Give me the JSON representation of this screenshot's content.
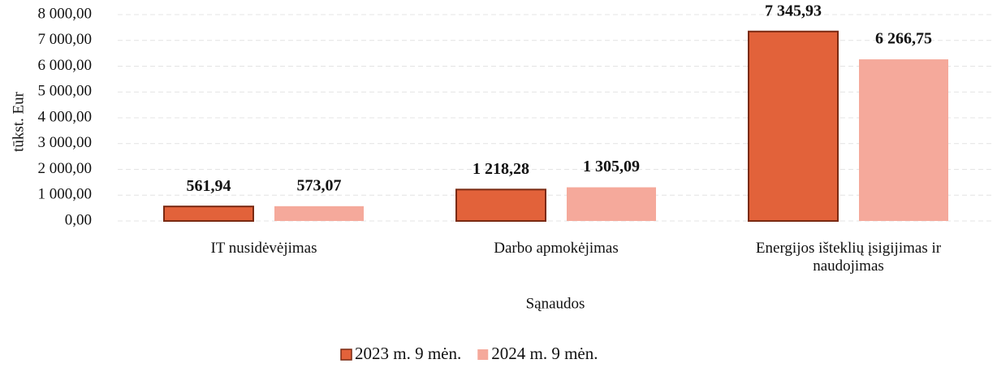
{
  "chart_data": {
    "type": "bar",
    "ylabel": "tūkst. Eur",
    "xlabel": "Sąnaudos",
    "categories": [
      "IT nusidėvėjimas",
      "Darbo apmokėjimas",
      "Energijos išteklių įsigijimas ir naudojimas"
    ],
    "series": [
      {
        "name": "2023 m. 9 mėn.",
        "color": "#e2623a",
        "values": [
          561.94,
          1218.28,
          7345.93
        ],
        "value_labels": [
          "561,94",
          "1 218,28",
          "7 345,93"
        ]
      },
      {
        "name": "2024 m. 9 mėn.",
        "color": "#f5a99b",
        "values": [
          573.07,
          1305.09,
          6266.75
        ],
        "value_labels": [
          "573,07",
          "1 305,09",
          "6 266,75"
        ]
      }
    ],
    "ylim": [
      0,
      8000
    ],
    "yticks": [
      {
        "value": 0,
        "label": "0,00"
      },
      {
        "value": 1000,
        "label": "1 000,00"
      },
      {
        "value": 2000,
        "label": "2 000,00"
      },
      {
        "value": 3000,
        "label": "3 000,00"
      },
      {
        "value": 4000,
        "label": "4 000,00"
      },
      {
        "value": 5000,
        "label": "5 000,00"
      },
      {
        "value": 6000,
        "label": "6 000,00"
      },
      {
        "value": 7000,
        "label": "7 000,00"
      },
      {
        "value": 8000,
        "label": "8 000,00"
      }
    ],
    "grid": true,
    "legend": "bottom"
  }
}
